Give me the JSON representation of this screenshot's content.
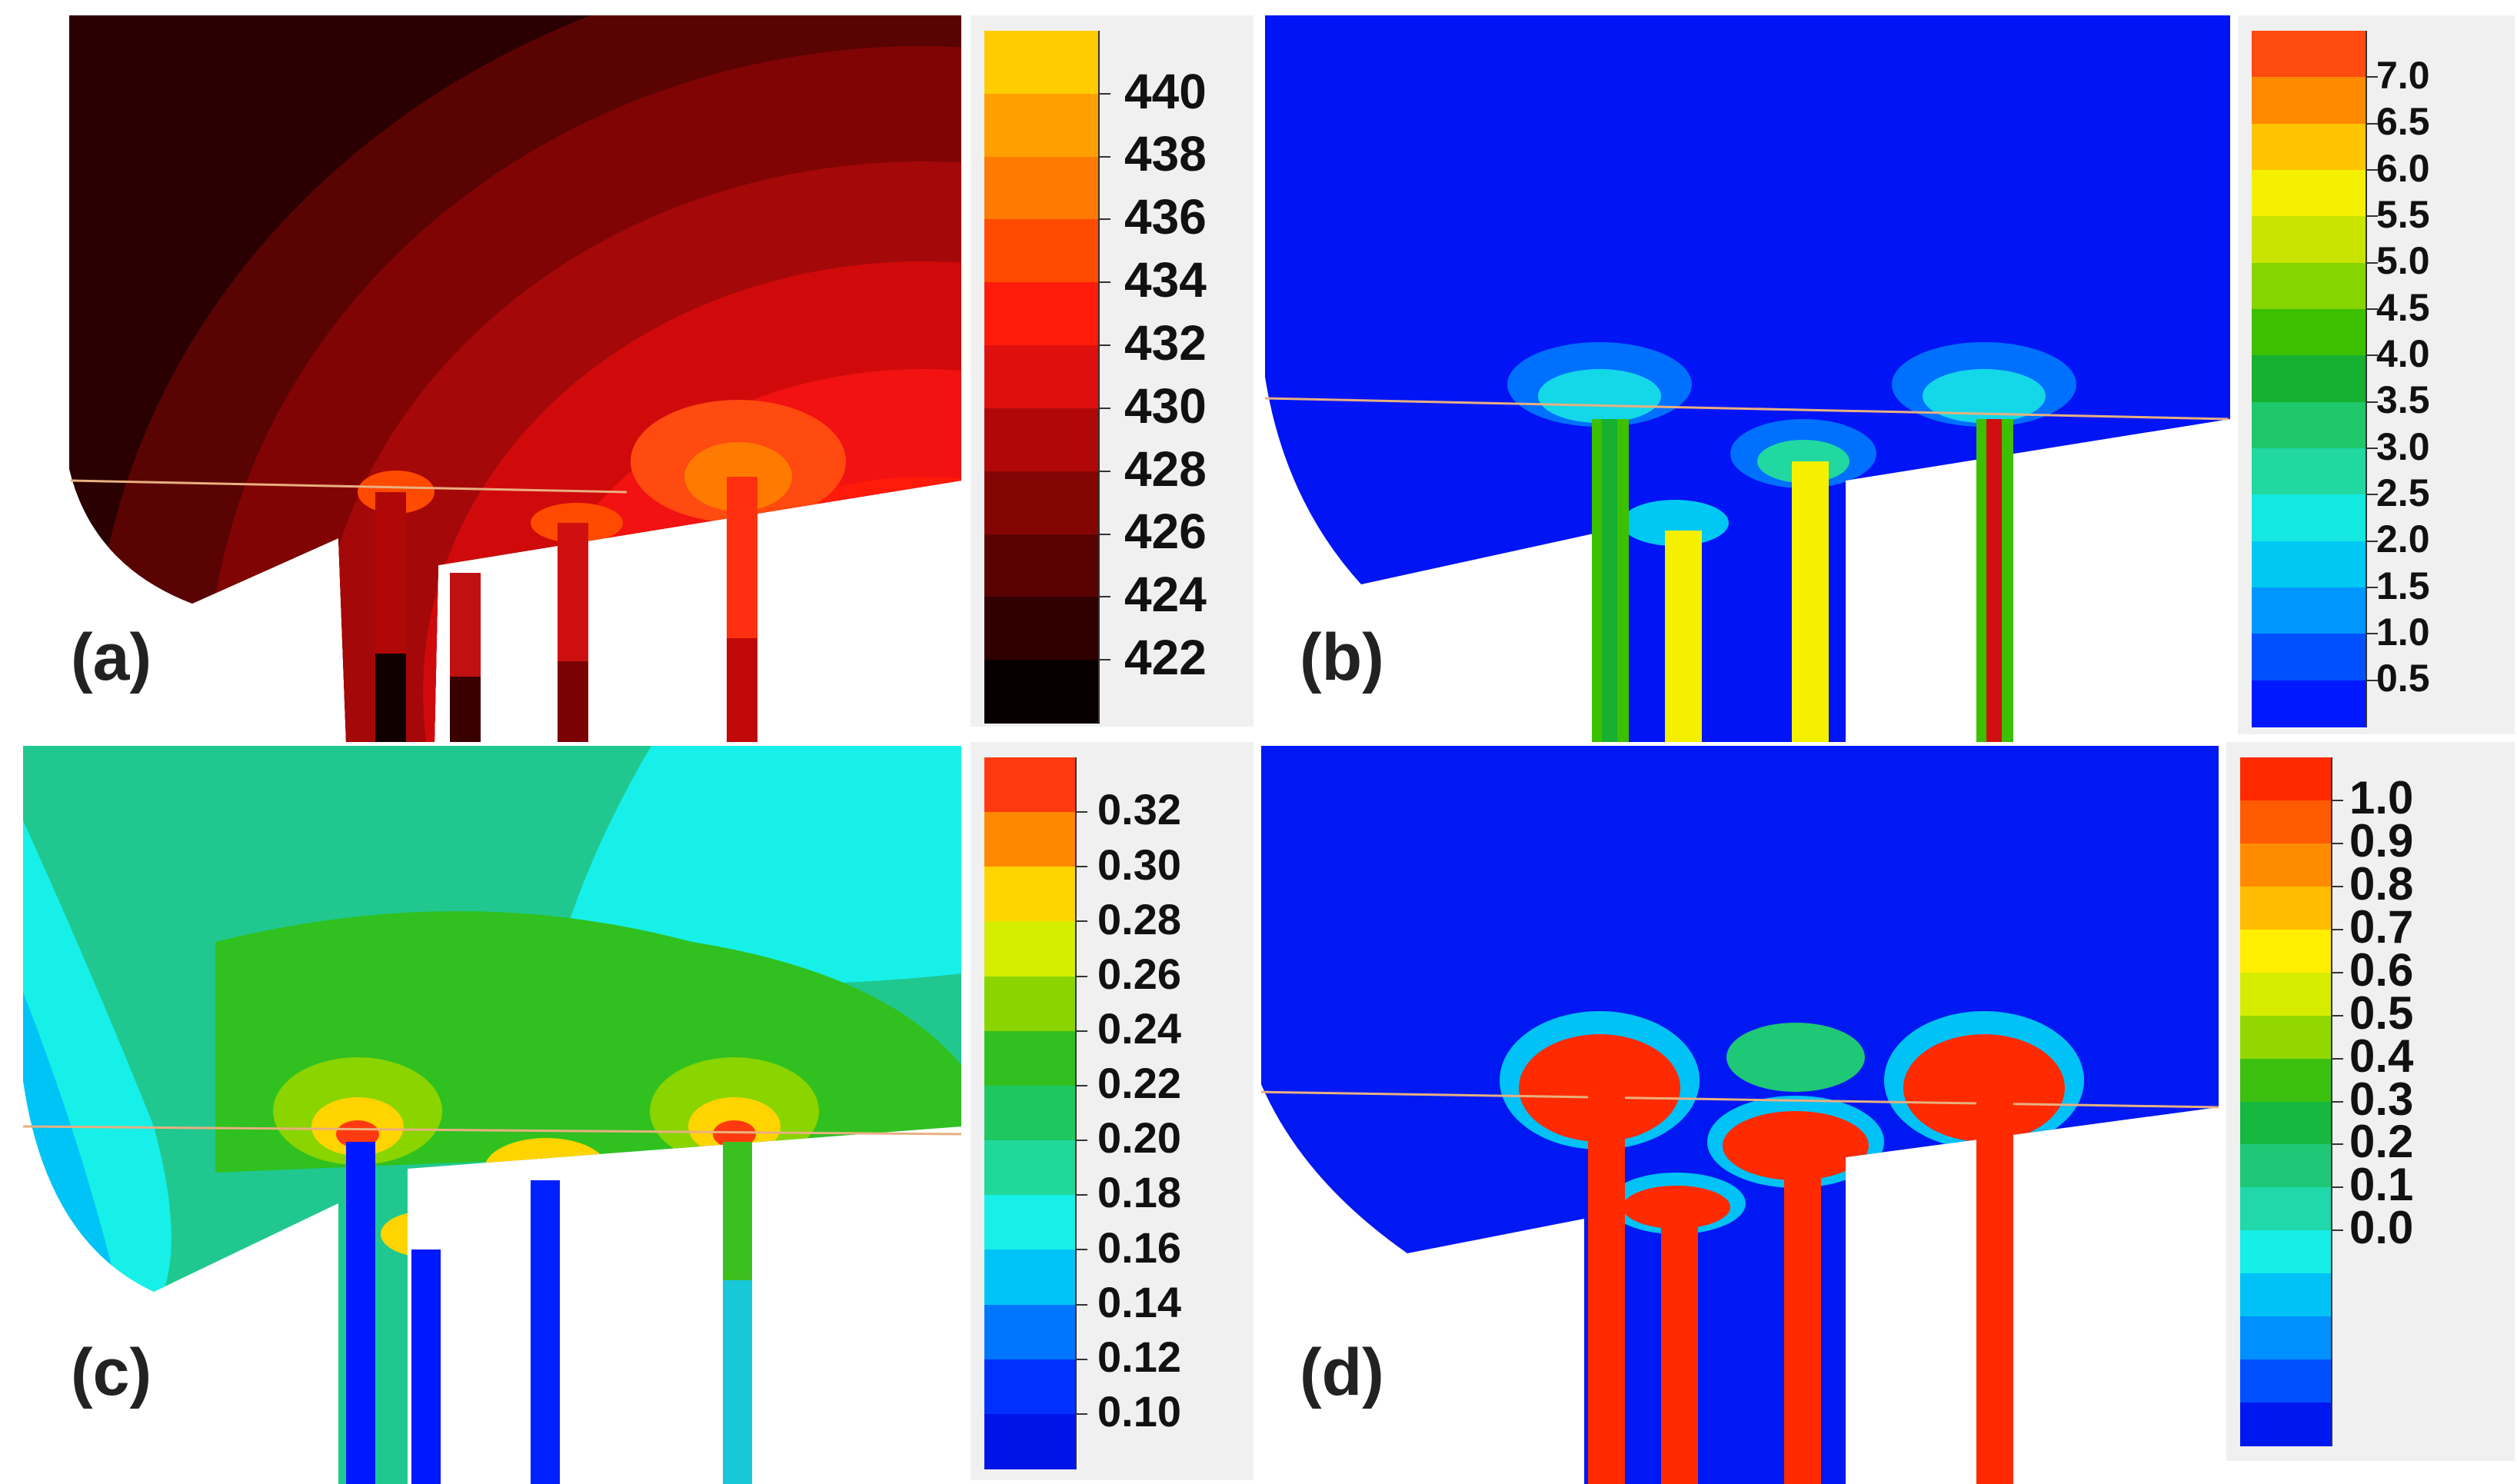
{
  "panels": [
    {
      "id": "a",
      "label": "(a)",
      "colorbar": {
        "ticks": [
          "440",
          "438",
          "436",
          "434",
          "432",
          "430",
          "428",
          "426",
          "424",
          "422"
        ],
        "colors": [
          "#ffcc00",
          "#ffa000",
          "#ff7a00",
          "#ff4a00",
          "#ff1a0a",
          "#e00f0f",
          "#b00808",
          "#850505",
          "#5a0202",
          "#300000",
          "#080000"
        ],
        "background": "#4a0606"
      }
    },
    {
      "id": "b",
      "label": "(b)",
      "colorbar": {
        "ticks": [
          "7.0",
          "6.5",
          "6.0",
          "5.5",
          "5.0",
          "4.5",
          "4.0",
          "3.5",
          "3.0",
          "2.5",
          "2.0",
          "1.5",
          "1.0",
          "0.5"
        ],
        "colors": [
          "#ff4a10",
          "#ff8a00",
          "#ffc400",
          "#f4f000",
          "#c8e400",
          "#86d400",
          "#3cc000",
          "#18b030",
          "#1ec86a",
          "#20d8a0",
          "#14e8e0",
          "#00c8f4",
          "#0096ff",
          "#0050ff",
          "#0018ff"
        ],
        "background": "#0014f5"
      }
    },
    {
      "id": "c",
      "label": "(c)",
      "colorbar": {
        "ticks": [
          "0.32",
          "0.30",
          "0.28",
          "0.26",
          "0.24",
          "0.22",
          "0.20",
          "0.18",
          "0.16",
          "0.14",
          "0.12",
          "0.10"
        ],
        "colors": [
          "#ff3a10",
          "#ff8800",
          "#ffd400",
          "#d4ee00",
          "#8ad400",
          "#30c020",
          "#1ec860",
          "#20d89a",
          "#16f0e8",
          "#00c4f6",
          "#0076ff",
          "#0030ff",
          "#0014e8"
        ],
        "background": "#20c890"
      }
    },
    {
      "id": "d",
      "label": "(d)",
      "colorbar": {
        "ticks": [
          "1.0",
          "0.9",
          "0.8",
          "0.7",
          "0.6",
          "0.5",
          "0.4",
          "0.3",
          "0.2",
          "0.1",
          "0.0"
        ],
        "colors": [
          "#ff2a00",
          "#ff5a00",
          "#ff8c00",
          "#ffbc00",
          "#ffee00",
          "#d6ec00",
          "#92d800",
          "#3cc010",
          "#16b840",
          "#1ec876",
          "#20d8aa",
          "#16eee8",
          "#00c2f6",
          "#0090ff",
          "#0050ff",
          "#0018f0"
        ],
        "background": "#0018f2"
      }
    }
  ]
}
